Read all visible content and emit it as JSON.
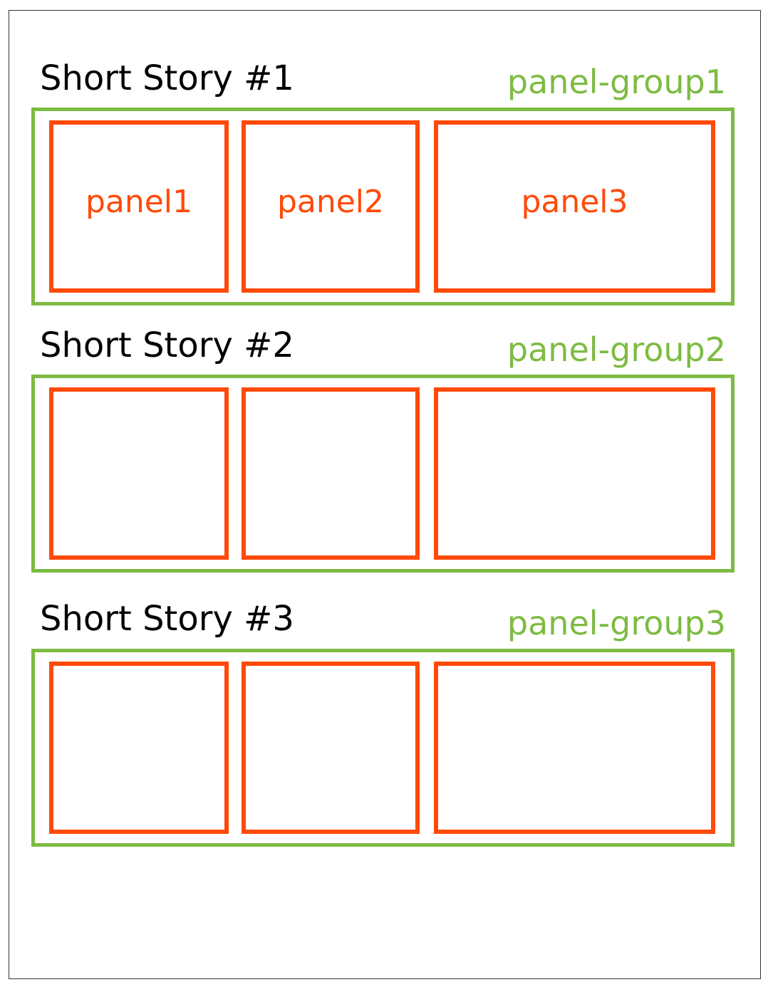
{
  "colors": {
    "panel_group": "#7dbb42",
    "panel": "#ff4a0a",
    "title": "#000000"
  },
  "stories": [
    {
      "title": "Short Story #1",
      "group_label": "panel-group1",
      "panels": [
        "panel1",
        "panel2",
        "panel3"
      ]
    },
    {
      "title": "Short Story #2",
      "group_label": "panel-group2",
      "panels": [
        "",
        "",
        ""
      ]
    },
    {
      "title": "Short Story #3",
      "group_label": "panel-group3",
      "panels": [
        "",
        "",
        ""
      ]
    }
  ]
}
